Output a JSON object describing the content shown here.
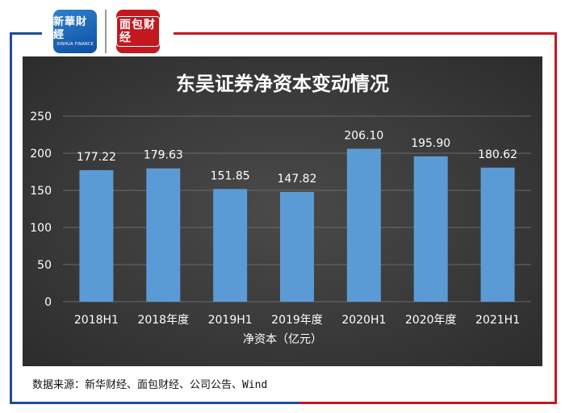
{
  "logos": {
    "xinhua_text": "新華財經",
    "xinhua_sub": "XINHUA FINANCE",
    "mianbao_text": "面包财经"
  },
  "source": "数据来源：新华财经、面包财经、公司公告、Wind",
  "colors": {
    "frame_blue": "#1f4e9a",
    "frame_red": "#c3181f",
    "bar": "#5b9bd5",
    "panel_bg": "#3a3a3a"
  },
  "chart_data": {
    "type": "bar",
    "title": "东吴证券净资本变动情况",
    "xlabel": "净资本（亿元）",
    "ylabel": "",
    "ylim": [
      0,
      250
    ],
    "yticks": [
      0,
      50,
      100,
      150,
      200,
      250
    ],
    "grid": true,
    "categories": [
      "2018H1",
      "2018年度",
      "2019H1",
      "2019年度",
      "2020H1",
      "2020年度",
      "2021H1"
    ],
    "values": [
      177.22,
      179.63,
      151.85,
      147.82,
      206.1,
      195.9,
      180.62
    ],
    "data_labels": [
      "177.22",
      "179.63",
      "151.85",
      "147.82",
      "206.10",
      "195.90",
      "180.62"
    ]
  }
}
